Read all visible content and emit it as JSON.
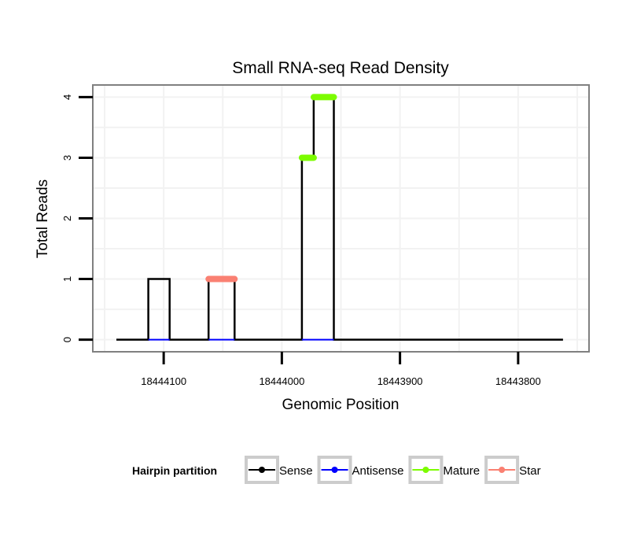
{
  "chart_data": {
    "type": "line",
    "title": "Small RNA-seq Read Density",
    "xlabel": "Genomic Position",
    "ylabel": "Total Reads",
    "x_reversed": true,
    "xlim": [
      18444160,
      18443740
    ],
    "ylim": [
      -0.2,
      4.2
    ],
    "x_ticks": [
      18444100,
      18444000,
      18443900,
      18443800
    ],
    "x_tick_labels": [
      "18444100",
      "18444000",
      "18443900",
      "18443800"
    ],
    "y_ticks": [
      0,
      1,
      2,
      3,
      4
    ],
    "y_tick_labels": [
      "0",
      "1",
      "2",
      "3",
      "4"
    ],
    "grid": true,
    "sense_profile": {
      "name": "Sense",
      "x": [
        18444140,
        18444113,
        18444113,
        18444095,
        18444095,
        18444062,
        18444062,
        18444040,
        18444040,
        18443983,
        18443983,
        18443973,
        18443973,
        18443956,
        18443956,
        18443762
      ],
      "y": [
        0,
        0,
        1,
        1,
        0,
        0,
        1,
        1,
        0,
        0,
        3,
        3,
        4,
        4,
        0,
        0
      ]
    },
    "antisense_profile": {
      "name": "Antisense",
      "segments": [
        {
          "x": [
            18444113,
            18444095
          ],
          "y": [
            0,
            0
          ]
        },
        {
          "x": [
            18444062,
            18444040
          ],
          "y": [
            0,
            0
          ]
        },
        {
          "x": [
            18443983,
            18443956
          ],
          "y": [
            0,
            0
          ]
        }
      ]
    },
    "highlight_segments": [
      {
        "partition": "Star",
        "x": [
          18444062,
          18444040
        ],
        "y": 1
      },
      {
        "partition": "Mature",
        "x": [
          18443983,
          18443973
        ],
        "y": 3
      },
      {
        "partition": "Mature",
        "x": [
          18443973,
          18443956
        ],
        "y": 4
      }
    ],
    "legend": {
      "title": "Hairpin partition",
      "position": "bottom",
      "entries": [
        {
          "label": "Sense",
          "color": "#000000"
        },
        {
          "label": "Antisense",
          "color": "#0000FF"
        },
        {
          "label": "Mature",
          "color": "#7CFC00"
        },
        {
          "label": "Star",
          "color": "#FA8072"
        }
      ]
    },
    "colors": {
      "Sense": "#000000",
      "Antisense": "#0000FF",
      "Mature": "#7CFC00",
      "Star": "#FA8072",
      "panel_border": "#808080",
      "grid": "#F2F2F2"
    }
  }
}
